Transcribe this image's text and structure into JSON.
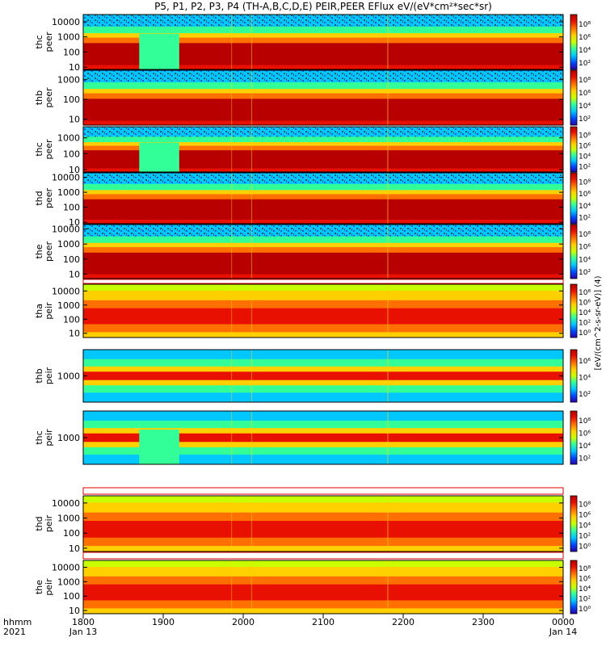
{
  "title": "P5, P1, P2, P3, P4 (TH-A,B,C,D,E) PEIR,PEER EFlux eV/(eV*cm²*sec*sr)",
  "colorbar_label": "[eV/(cm^2-s-sr-eV)] (4)",
  "time_axis": {
    "row1_label": "hhmm",
    "row2_label": "2021",
    "ticks": [
      {
        "t": 1800,
        "label": "1800",
        "date": "Jan 13"
      },
      {
        "t": 1900,
        "label": "1900",
        "date": ""
      },
      {
        "t": 2000,
        "label": "2000",
        "date": ""
      },
      {
        "t": 2100,
        "label": "2100",
        "date": ""
      },
      {
        "t": 2200,
        "label": "2200",
        "date": ""
      },
      {
        "t": 2300,
        "label": "2300",
        "date": ""
      },
      {
        "t": 2400,
        "label": "0000",
        "date": "Jan 14"
      }
    ]
  },
  "chart_data": {
    "type": "heatmap",
    "x_range": [
      "2021-01-13 18:00",
      "2021-01-14 00:00"
    ],
    "y_scale": "log",
    "colorbar_scale": "log",
    "colormap": [
      "#2b00a8",
      "#0048ff",
      "#00c8ff",
      "#33ff99",
      "#c8ff00",
      "#ffd000",
      "#ff7000",
      "#e81000",
      "#b80000"
    ],
    "panels": [
      {
        "line1": "thc",
        "line2": "peer",
        "ylim": [
          7,
          30000
        ],
        "yticks": [
          "10",
          "100",
          "1000",
          "10000"
        ],
        "cticks": [
          "10²",
          "10⁴",
          "10⁶",
          "10⁸"
        ]
      },
      {
        "line1": "thb",
        "line2": "peer",
        "ylim": [
          5,
          3000
        ],
        "yticks": [
          "10",
          "100",
          "1000"
        ],
        "cticks": [
          "10²",
          "10⁴",
          "10⁶",
          "10⁸"
        ]
      },
      {
        "line1": "thc",
        "line2": "peer",
        "ylim": [
          7,
          5000
        ],
        "yticks": [
          "10",
          "100",
          "1000"
        ],
        "cticks": [
          "10²",
          "10⁴",
          "10⁶",
          "10⁸"
        ]
      },
      {
        "line1": "thd",
        "line2": "peer",
        "ylim": [
          8,
          20000
        ],
        "yticks": [
          "10",
          "100",
          "1000",
          "10000"
        ],
        "cticks": [
          "10²",
          "10⁴",
          "10⁶",
          "10⁸"
        ]
      },
      {
        "line1": "the",
        "line2": "peer",
        "ylim": [
          5,
          20000
        ],
        "yticks": [
          "10",
          "100",
          "1000",
          "10000"
        ],
        "cticks": [
          "10²",
          "10⁴",
          "10⁶",
          "10⁸"
        ]
      },
      {
        "line1": "tha",
        "line2": "peir",
        "ylim": [
          5,
          30000
        ],
        "yticks": [
          "10",
          "100",
          "1000",
          "10000"
        ],
        "cticks": [
          "10⁰",
          "10²",
          "10⁴",
          "10⁶",
          "10⁸"
        ]
      },
      {
        "line1": "thb",
        "line2": "peir",
        "ylim": [
          200,
          5000
        ],
        "yticks": [
          "1000"
        ],
        "cticks": [
          "10²",
          "10⁴",
          "10⁶"
        ]
      },
      {
        "line1": "thc",
        "line2": "peir",
        "ylim": [
          200,
          5000
        ],
        "yticks": [
          "1000"
        ],
        "cticks": [
          "10²",
          "10⁴",
          "10⁶",
          "10⁸"
        ]
      },
      {
        "line1": "thd",
        "line2": "peir",
        "ylim": [
          6,
          30000
        ],
        "yticks": [
          "10",
          "100",
          "1000",
          "10000"
        ],
        "cticks": [
          "10⁰",
          "10²",
          "10⁴",
          "10⁶",
          "10⁸"
        ]
      },
      {
        "line1": "the",
        "line2": "peir",
        "ylim": [
          6,
          30000
        ],
        "yticks": [
          "10",
          "100",
          "1000",
          "10000"
        ],
        "cticks": [
          "10⁰",
          "10²",
          "10⁴",
          "10⁶",
          "10⁸"
        ]
      }
    ]
  }
}
